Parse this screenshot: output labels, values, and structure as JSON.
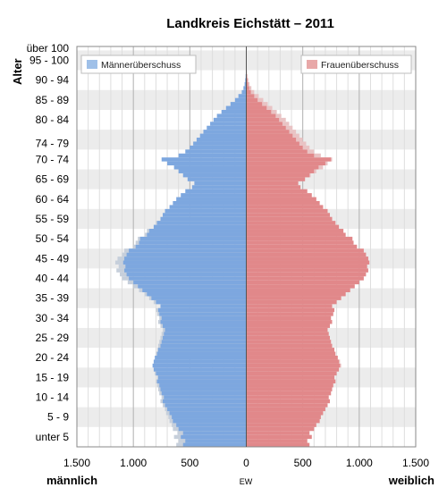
{
  "chart_data": {
    "type": "bar",
    "orientation": "horizontal-pyramid",
    "title": "Landkreis Eichstätt – 2011",
    "ylabel": "Alter",
    "xlabel_left": "männlich",
    "xlabel_center": "EW",
    "xlabel_right": "weiblich",
    "xlim": [
      -1500,
      1500
    ],
    "x_ticks": [
      {
        "value": -1500,
        "label": "1.500"
      },
      {
        "value": -1000,
        "label": "1.000"
      },
      {
        "value": -500,
        "label": "500"
      },
      {
        "value": 0,
        "label": "0"
      },
      {
        "value": 500,
        "label": "500"
      },
      {
        "value": 1000,
        "label": "1.000"
      },
      {
        "value": 1500,
        "label": "1.500"
      }
    ],
    "age_range": [
      0,
      100
    ],
    "age_group_labels": [
      {
        "age": 0,
        "label": "unter 5"
      },
      {
        "age": 5,
        "label": "5 - 9"
      },
      {
        "age": 10,
        "label": "10 - 14"
      },
      {
        "age": 15,
        "label": "15 - 19"
      },
      {
        "age": 20,
        "label": "20 - 24"
      },
      {
        "age": 25,
        "label": "25 - 29"
      },
      {
        "age": 30,
        "label": "30 - 34"
      },
      {
        "age": 35,
        "label": "35 - 39"
      },
      {
        "age": 40,
        "label": "40 - 44"
      },
      {
        "age": 45,
        "label": "45 - 49"
      },
      {
        "age": 50,
        "label": "50 - 54"
      },
      {
        "age": 55,
        "label": "55 - 59"
      },
      {
        "age": 60,
        "label": "60 - 64"
      },
      {
        "age": 65,
        "label": "65 - 69"
      },
      {
        "age": 70,
        "label": "70 - 74"
      },
      {
        "age": 74,
        "label": "74 - 79"
      },
      {
        "age": 80,
        "label": "80 - 84"
      },
      {
        "age": 85,
        "label": "85 - 89"
      },
      {
        "age": 90,
        "label": "90 - 94"
      },
      {
        "age": 95,
        "label": "95 - 100"
      },
      {
        "age": 100,
        "label": "über 100"
      }
    ],
    "legend": [
      {
        "label": "Männerüberschuss",
        "color": "#9fc0e8",
        "position": "top-left"
      },
      {
        "label": "Frauenüberschuss",
        "color": "#e8a8a8",
        "position": "top-right"
      }
    ],
    "colors": {
      "male": "#7da7df",
      "male_surplus": "#c6cfdb",
      "female": "#e1888a",
      "female_surplus": "#e9c3c4",
      "band": "#ececec"
    },
    "ages": [
      0,
      1,
      2,
      3,
      4,
      5,
      6,
      7,
      8,
      9,
      10,
      11,
      12,
      13,
      14,
      15,
      16,
      17,
      18,
      19,
      20,
      21,
      22,
      23,
      24,
      25,
      26,
      27,
      28,
      29,
      30,
      31,
      32,
      33,
      34,
      35,
      36,
      37,
      38,
      39,
      40,
      41,
      42,
      43,
      44,
      45,
      46,
      47,
      48,
      49,
      50,
      51,
      52,
      53,
      54,
      55,
      56,
      57,
      58,
      59,
      60,
      61,
      62,
      63,
      64,
      65,
      66,
      67,
      68,
      69,
      70,
      71,
      72,
      73,
      74,
      75,
      76,
      77,
      78,
      79,
      80,
      81,
      82,
      83,
      84,
      85,
      86,
      87,
      88,
      89,
      90,
      91,
      92,
      93,
      94,
      95,
      96,
      97,
      98,
      99,
      100
    ],
    "series": [
      {
        "name": "Männerüberschuss",
        "values": [
          620,
          600,
          640,
          610,
          650,
          660,
          680,
          690,
          710,
          720,
          740,
          760,
          750,
          770,
          780,
          790,
          800,
          790,
          810,
          820,
          830,
          820,
          810,
          800,
          790,
          780,
          770,
          760,
          750,
          740,
          760,
          780,
          770,
          790,
          800,
          760,
          820,
          860,
          900,
          950,
          1000,
          1050,
          1100,
          1120,
          1150,
          1130,
          1160,
          1140,
          1100,
          1080,
          1000,
          980,
          960,
          900,
          880,
          820,
          800,
          760,
          740,
          720,
          680,
          650,
          620,
          580,
          540,
          480,
          460,
          520,
          560,
          600,
          640,
          700,
          750,
          600,
          540,
          500,
          470,
          440,
          410,
          380,
          350,
          320,
          290,
          260,
          220,
          180,
          140,
          100,
          70,
          40,
          25,
          15,
          10,
          6,
          4,
          3,
          2,
          1,
          1,
          0,
          0
        ]
      },
      {
        "name": "Frauenüberschuss",
        "values": [
          560,
          540,
          580,
          560,
          600,
          620,
          650,
          660,
          680,
          700,
          720,
          740,
          730,
          750,
          760,
          770,
          790,
          780,
          800,
          820,
          840,
          830,
          810,
          790,
          780,
          760,
          750,
          740,
          730,
          720,
          740,
          760,
          750,
          770,
          780,
          760,
          800,
          840,
          880,
          920,
          960,
          1000,
          1040,
          1060,
          1080,
          1070,
          1090,
          1080,
          1060,
          1040,
          980,
          950,
          940,
          880,
          860,
          820,
          790,
          760,
          740,
          720,
          680,
          650,
          620,
          580,
          540,
          480,
          460,
          520,
          570,
          620,
          680,
          720,
          760,
          660,
          600,
          560,
          530,
          500,
          470,
          440,
          410,
          380,
          350,
          310,
          270,
          230,
          190,
          150,
          110,
          70,
          45,
          28,
          18,
          10,
          6,
          4,
          3,
          2,
          1,
          0,
          0
        ]
      }
    ]
  }
}
